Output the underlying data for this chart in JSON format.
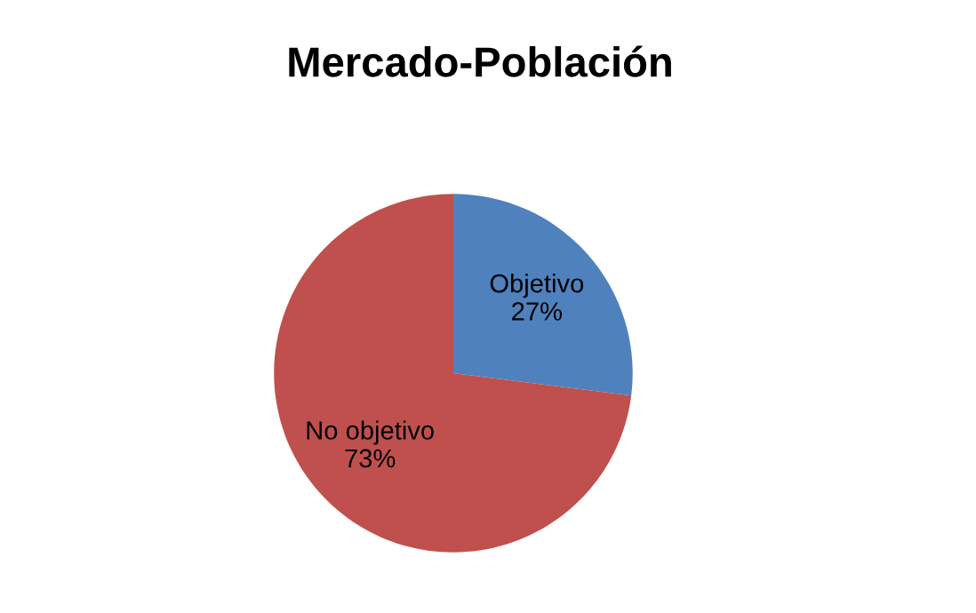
{
  "chart_data": {
    "type": "pie",
    "title": "Mercado-Población",
    "categories": [
      "Objetivo",
      "No objetivo"
    ],
    "values": [
      27,
      73
    ],
    "value_labels": [
      "27%",
      "73%"
    ],
    "colors": [
      "#4f81bd",
      "#c0504d"
    ],
    "legend": false
  }
}
